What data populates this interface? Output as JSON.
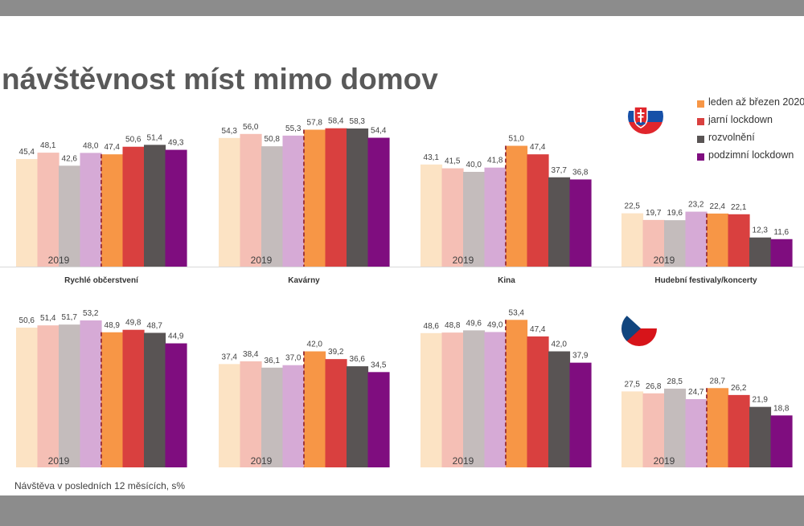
{
  "page": {
    "title": "návštěvnost míst mimo domov",
    "footnote": "Návštěva v posledních 12 měsících, s%"
  },
  "legend": [
    {
      "label": "leden až březen 2020",
      "color": "#f79646"
    },
    {
      "label": "jarní lockdown",
      "color": "#d9403f"
    },
    {
      "label": "rozvolnění",
      "color": "#595454"
    },
    {
      "label": "podzimní lockdown",
      "color": "#7f0d7f"
    }
  ],
  "colors": {
    "bars": [
      "#fce3c4",
      "#f5bfb5",
      "#c4bcbc",
      "#d6aad6",
      "#f79646",
      "#d9403f",
      "#595454",
      "#7f0d7f"
    ],
    "separator": "#a0393e",
    "label": "#404040",
    "year_label": "#404040"
  },
  "flags": [
    {
      "name": "slovakia-flag-icon",
      "country": "Slovakia"
    },
    {
      "name": "czech-flag-icon",
      "country": "Czechia"
    }
  ],
  "chart_data": [
    {
      "type": "bar",
      "panel": "Slovakia",
      "category": "Rychlé občerstvení",
      "year_label": "2019",
      "values": [
        45.4,
        48.1,
        42.6,
        48.0,
        47.4,
        50.6,
        51.4,
        49.3
      ],
      "labels": [
        "45,4",
        "48,1",
        "42,6",
        "48,0",
        "47,4",
        "50,6",
        "51,4",
        "49,3"
      ]
    },
    {
      "type": "bar",
      "panel": "Slovakia",
      "category": "Kavárny",
      "year_label": "2019",
      "values": [
        54.3,
        56.0,
        50.8,
        55.3,
        57.8,
        58.4,
        58.3,
        54.4
      ],
      "labels": [
        "54,3",
        "56,0",
        "50,8",
        "55,3",
        "57,8",
        "58,4",
        "58,3",
        "54,4"
      ]
    },
    {
      "type": "bar",
      "panel": "Slovakia",
      "category": "Kina",
      "year_label": "2019",
      "values": [
        43.1,
        41.5,
        40.0,
        41.8,
        51.0,
        47.4,
        37.7,
        36.8
      ],
      "labels": [
        "43,1",
        "41,5",
        "40,0",
        "41,8",
        "51,0",
        "47,4",
        "37,7",
        "36,8"
      ]
    },
    {
      "type": "bar",
      "panel": "Slovakia",
      "category": "Hudební festivaly/koncerty",
      "year_label": "2019",
      "values": [
        22.5,
        19.7,
        19.6,
        23.2,
        22.4,
        22.1,
        12.3,
        11.6
      ],
      "labels": [
        "22,5",
        "19,7",
        "19,6",
        "23,2",
        "22,4",
        "22,1",
        "12,3",
        "11,6"
      ]
    },
    {
      "type": "bar",
      "panel": "Czechia",
      "category": "",
      "year_label": "2019",
      "values": [
        50.6,
        51.4,
        51.7,
        53.2,
        48.9,
        49.8,
        48.7,
        44.9
      ],
      "labels": [
        "50,6",
        "51,4",
        "51,7",
        "53,2",
        "48,9",
        "49,8",
        "48,7",
        "44,9"
      ]
    },
    {
      "type": "bar",
      "panel": "Czechia",
      "category": "",
      "year_label": "2019",
      "values": [
        37.4,
        38.4,
        36.1,
        37.0,
        42.0,
        39.2,
        36.6,
        34.5
      ],
      "labels": [
        "37,4",
        "38,4",
        "36,1",
        "37,0",
        "42,0",
        "39,2",
        "36,6",
        "34,5"
      ]
    },
    {
      "type": "bar",
      "panel": "Czechia",
      "category": "",
      "year_label": "2019",
      "values": [
        48.6,
        48.8,
        49.6,
        49.0,
        53.4,
        47.4,
        42.0,
        37.9
      ],
      "labels": [
        "48,6",
        "48,8",
        "49,6",
        "49,0",
        "53,4",
        "47,4",
        "42,0",
        "37,9"
      ]
    },
    {
      "type": "bar",
      "panel": "Czechia",
      "category": "",
      "year_label": "2019",
      "values": [
        27.5,
        26.8,
        28.5,
        24.7,
        28.7,
        26.2,
        21.9,
        18.8
      ],
      "labels": [
        "27,5",
        "26,8",
        "28,5",
        "24,7",
        "28,7",
        "26,2",
        "21,9",
        "18,8"
      ]
    }
  ]
}
